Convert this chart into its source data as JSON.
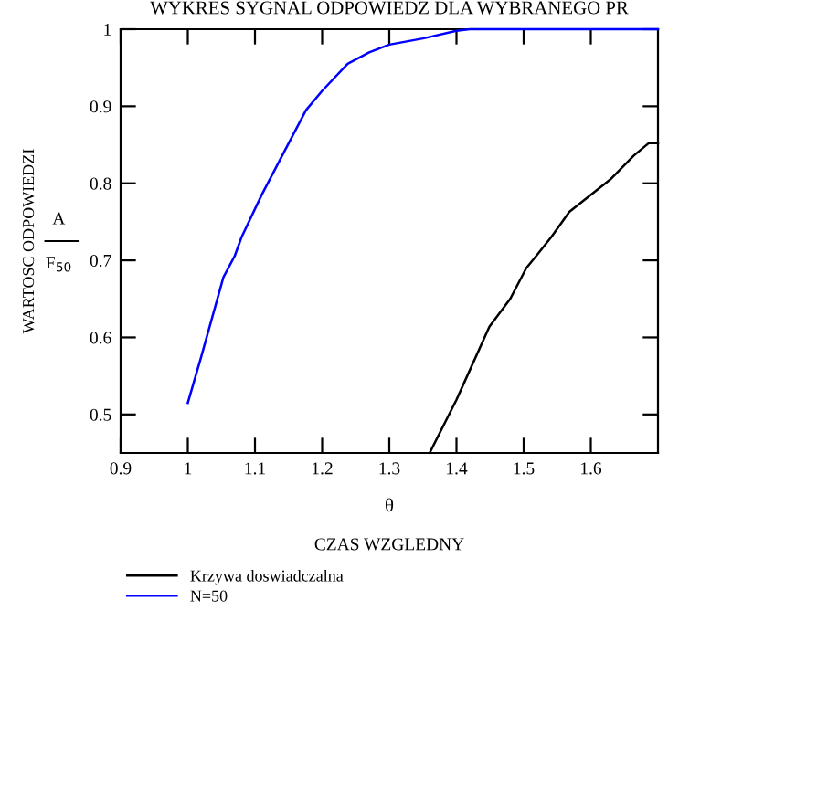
{
  "chart_data": {
    "type": "line",
    "title": "WYKRES SYGNAL ODPOWIEDZ DLA WYBRANEGO PR",
    "xlabel": "θ",
    "ylabel": "WARTOSC ODPOWIEDZI",
    "annotations": [
      "A",
      "F$_{50}$",
      "CZAS WZGLEDNY"
    ],
    "xlim": [
      0.9,
      1.7
    ],
    "xticks": [
      0.9,
      1,
      1.1,
      1.2,
      1.3,
      1.4,
      1.5,
      1.6
    ],
    "ylim": [
      0.45,
      1
    ],
    "yticks": [
      0.5,
      0.6,
      0.7,
      0.8,
      0.9,
      1
    ],
    "grid": false,
    "legend": "bottom left",
    "series": [
      {
        "name": "Krzywa doswiadczalna",
        "color": "#000000",
        "x": [
          1.36,
          1.4,
          1.449,
          1.48,
          1.504,
          1.519,
          1.541,
          1.568,
          1.629,
          1.664,
          1.686,
          1.7
        ],
        "values": [
          0.45,
          0.519,
          0.614,
          0.65,
          0.69,
          0.706,
          0.73,
          0.763,
          0.805,
          0.836,
          0.852,
          0.852
        ]
      },
      {
        "name": "N=50",
        "color": "#0000ff",
        "x": [
          1.0,
          1.02,
          1.053,
          1.07,
          1.08,
          1.11,
          1.14,
          1.176,
          1.2,
          1.238,
          1.27,
          1.3,
          1.35,
          1.4,
          1.42,
          1.7
        ],
        "values": [
          0.515,
          0.575,
          0.678,
          0.706,
          0.73,
          0.785,
          0.835,
          0.895,
          0.92,
          0.955,
          0.97,
          0.98,
          0.988,
          0.998,
          1.0,
          1.0
        ]
      }
    ]
  }
}
